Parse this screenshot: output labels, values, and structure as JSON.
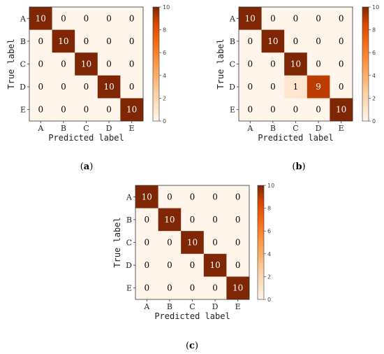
{
  "chart_data": [
    {
      "type": "heatmap",
      "panel_label": "a",
      "x_categories": [
        "A",
        "B",
        "C",
        "D",
        "E"
      ],
      "y_categories": [
        "A",
        "B",
        "C",
        "D",
        "E"
      ],
      "xlabel": "Predicted label",
      "ylabel": "True label",
      "values": [
        [
          10,
          0,
          0,
          0,
          0
        ],
        [
          0,
          10,
          0,
          0,
          0
        ],
        [
          0,
          0,
          10,
          0,
          0
        ],
        [
          0,
          0,
          0,
          10,
          0
        ],
        [
          0,
          0,
          0,
          0,
          10
        ]
      ],
      "colorbar": {
        "min": 0,
        "max": 10,
        "ticks": [
          0,
          2,
          4,
          6,
          8,
          10
        ]
      },
      "colormap": {
        "low": "#fff5eb",
        "high": "#7f2704"
      }
    },
    {
      "type": "heatmap",
      "panel_label": "b",
      "x_categories": [
        "A",
        "B",
        "C",
        "D",
        "E"
      ],
      "y_categories": [
        "A",
        "B",
        "C",
        "D",
        "E"
      ],
      "xlabel": "Predicted label",
      "ylabel": "True label",
      "values": [
        [
          10,
          0,
          0,
          0,
          0
        ],
        [
          0,
          10,
          0,
          0,
          0
        ],
        [
          0,
          0,
          10,
          0,
          0
        ],
        [
          0,
          0,
          1,
          9,
          0
        ],
        [
          0,
          0,
          0,
          0,
          10
        ]
      ],
      "colorbar": {
        "min": 0,
        "max": 10,
        "ticks": [
          0,
          2,
          4,
          6,
          8,
          10
        ]
      },
      "colormap": {
        "low": "#fff5eb",
        "high": "#7f2704"
      }
    },
    {
      "type": "heatmap",
      "panel_label": "c",
      "x_categories": [
        "A",
        "B",
        "C",
        "D",
        "E"
      ],
      "y_categories": [
        "A",
        "B",
        "C",
        "D",
        "E"
      ],
      "xlabel": "Predicted label",
      "ylabel": "True label",
      "values": [
        [
          10,
          0,
          0,
          0,
          0
        ],
        [
          0,
          10,
          0,
          0,
          0
        ],
        [
          0,
          0,
          10,
          0,
          0
        ],
        [
          0,
          0,
          0,
          10,
          0
        ],
        [
          0,
          0,
          0,
          0,
          10
        ]
      ],
      "colorbar": {
        "min": 0,
        "max": 10,
        "ticks": [
          0,
          2,
          4,
          6,
          8,
          10
        ]
      },
      "colormap": {
        "low": "#fff5eb",
        "high": "#7f2704"
      }
    }
  ]
}
